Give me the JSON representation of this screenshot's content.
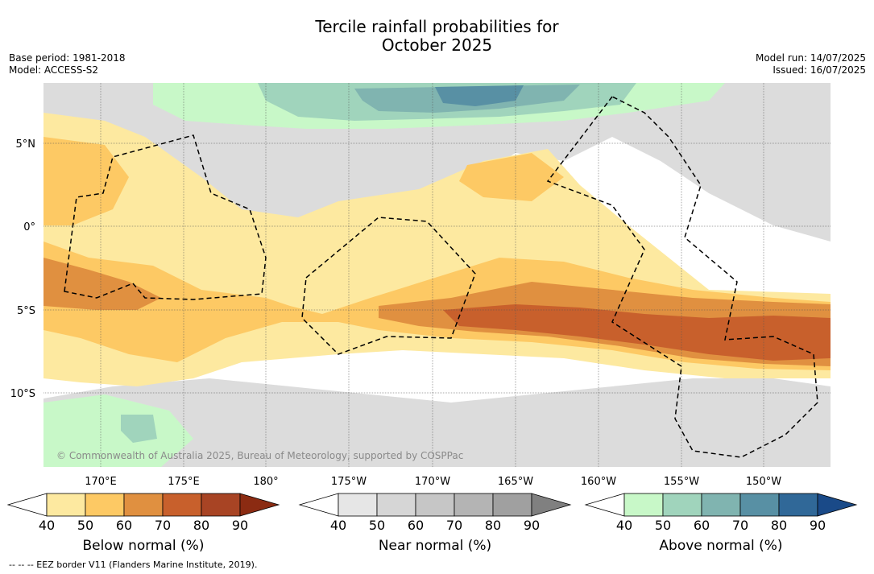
{
  "title_line1": "Tercile rainfall probabilities for",
  "title_line2": "October 2025",
  "base_period": "Base period: 1981-2018",
  "model": "Model: ACCESS-S2",
  "model_run": "Model run: 14/07/2025",
  "issued": "Issued: 16/07/2025",
  "copyright": "© Commonwealth of Australia 2025, Bureau of Meteorology, supported by COSPPac",
  "footer": "-- -- -- EEZ border V11 (Flanders Marine Institute, 2019).",
  "lat_labels": [
    "5°N",
    "0°",
    "5°S",
    "10°S"
  ],
  "lon_labels": [
    "170°E",
    "175°E",
    "180°",
    "175°W",
    "170°W",
    "165°W",
    "160°W",
    "155°W",
    "150°W"
  ],
  "colorbars": [
    {
      "label": "Below normal (%)",
      "ticks": [
        "40",
        "50",
        "60",
        "70",
        "80",
        "90"
      ],
      "colors": [
        "#ffffff",
        "#fde9a0",
        "#fdc964",
        "#e09040",
        "#c8602c",
        "#a84424",
        "#8b2b12"
      ]
    },
    {
      "label": "Near normal (%)",
      "ticks": [
        "40",
        "50",
        "60",
        "70",
        "80",
        "90"
      ],
      "colors": [
        "#ffffff",
        "#e6e6e6",
        "#d6d6d6",
        "#c6c6c6",
        "#b4b4b4",
        "#a0a0a0",
        "#808080"
      ]
    },
    {
      "label": "Above normal (%)",
      "ticks": [
        "40",
        "50",
        "60",
        "70",
        "80",
        "90"
      ],
      "colors": [
        "#ffffff",
        "#c8f8c8",
        "#a0d4bc",
        "#80b4b0",
        "#5890a4",
        "#306898",
        "#1a4a88"
      ]
    }
  ]
}
